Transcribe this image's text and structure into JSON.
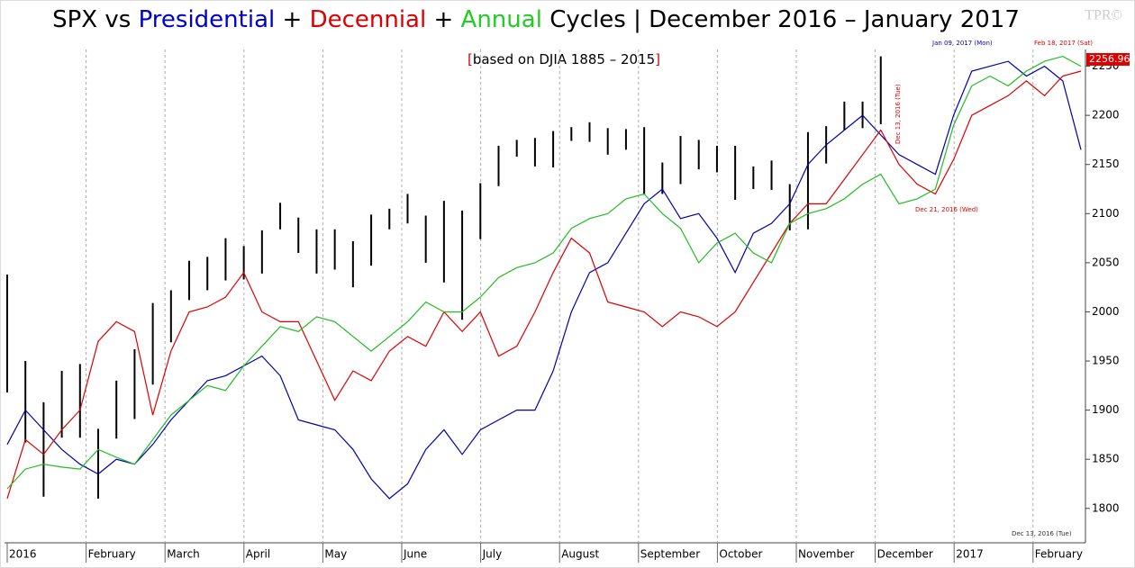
{
  "chart_data": {
    "type": "line",
    "title_parts": [
      {
        "text": "SPX vs ",
        "color": "#000000"
      },
      {
        "text": "Presidential",
        "color": "#0000cc"
      },
      {
        "text": " + ",
        "color": "#000000"
      },
      {
        "text": "Decennial",
        "color": "#dd0000"
      },
      {
        "text": " + ",
        "color": "#000000"
      },
      {
        "text": "Annual",
        "color": "#22cc22"
      },
      {
        "text": " Cycles | December 2016 – January 2017",
        "color": "#000000"
      }
    ],
    "subtitle_parts": [
      {
        "text": "[",
        "color": "#dd0000"
      },
      {
        "text": "based on DJIA 1885 – 2015",
        "color": "#000000"
      },
      {
        "text": "]",
        "color": "#dd0000"
      }
    ],
    "watermark": "TPR©",
    "x_axis_labels": [
      "2016",
      "February",
      "March",
      "April",
      "May",
      "June",
      "July",
      "August",
      "September",
      "October",
      "November",
      "December",
      "2017",
      "February"
    ],
    "series": [
      {
        "name": "SPX",
        "color": "#000000",
        "high": [
          2038,
          1950,
          1908,
          1940,
          1947,
          1881,
          1930,
          1962,
          2009,
          2022,
          2052,
          2056,
          2075,
          2067,
          2083,
          2111,
          2096,
          2084,
          2084,
          2072,
          2099,
          2105,
          2120,
          2098,
          2113,
          2103,
          2131,
          2169,
          2175,
          2177,
          2184,
          2188,
          2193,
          2187,
          2186,
          2188,
          2152,
          2179,
          2175,
          2169,
          2169,
          2148,
          2154,
          2130,
          2183,
          2189,
          2214,
          2214,
          2260,
          null,
          null,
          null,
          null,
          null,
          null,
          null,
          null,
          null,
          null,
          null
        ],
        "low": [
          1918,
          1867,
          1812,
          1872,
          1872,
          1810,
          1871,
          1891,
          1926,
          1969,
          2012,
          2022,
          2032,
          2033,
          2039,
          2084,
          2060,
          2039,
          2043,
          2025,
          2047,
          2084,
          2090,
          2050,
          2030,
          1992,
          2074,
          2128,
          2158,
          2148,
          2147,
          2174,
          2173,
          2160,
          2165,
          2119,
          2120,
          2130,
          2145,
          2142,
          2114,
          2125,
          2124,
          2083,
          2084,
          2151,
          2185,
          2187,
          2191,
          null,
          null,
          null,
          null,
          null,
          null,
          null,
          null,
          null,
          null,
          null
        ]
      },
      {
        "name": "Presidential",
        "color": "#0000aa",
        "values": [
          1865,
          1900,
          1880,
          1860,
          1845,
          1835,
          1850,
          1845,
          1865,
          1890,
          1910,
          1930,
          1935,
          1945,
          1955,
          1935,
          1890,
          1885,
          1880,
          1860,
          1830,
          1810,
          1825,
          1860,
          1880,
          1855,
          1880,
          1890,
          1900,
          1900,
          1940,
          2000,
          2040,
          2050,
          2080,
          2110,
          2125,
          2095,
          2100,
          2075,
          2040,
          2080,
          2090,
          2110,
          2150,
          2170,
          2185,
          2200,
          2180,
          2160,
          2150,
          2140,
          2200,
          2245,
          2250,
          2255,
          2240,
          2250,
          2235,
          2165
        ]
      },
      {
        "name": "Decennial",
        "color": "#dd0000",
        "values": [
          1810,
          1870,
          1855,
          1880,
          1900,
          1970,
          1990,
          1980,
          1895,
          1960,
          2000,
          2005,
          2015,
          2040,
          2000,
          1990,
          1990,
          1950,
          1910,
          1940,
          1930,
          1960,
          1975,
          1965,
          2000,
          1980,
          2000,
          1955,
          1965,
          2000,
          2040,
          2075,
          2060,
          2010,
          2005,
          2000,
          1985,
          2000,
          1995,
          1985,
          2000,
          2030,
          2060,
          2090,
          2110,
          2110,
          2135,
          2160,
          2185,
          2150,
          2130,
          2120,
          2155,
          2200,
          2210,
          2220,
          2235,
          2220,
          2240,
          2245
        ]
      },
      {
        "name": "Annual",
        "color": "#22bb22",
        "values": [
          1820,
          1840,
          1845,
          1842,
          1840,
          1860,
          1852,
          1845,
          1870,
          1895,
          1910,
          1925,
          1920,
          1945,
          1965,
          1985,
          1980,
          1995,
          1990,
          1975,
          1960,
          1975,
          1990,
          2010,
          2000,
          2000,
          2015,
          2035,
          2045,
          2050,
          2060,
          2085,
          2095,
          2100,
          2115,
          2120,
          2100,
          2085,
          2050,
          2070,
          2080,
          2060,
          2050,
          2090,
          2100,
          2105,
          2115,
          2130,
          2140,
          2110,
          2115,
          2125,
          2190,
          2230,
          2240,
          2230,
          2245,
          2255,
          2260,
          2250
        ]
      }
    ],
    "ylim": [
      1765,
      2267
    ],
    "yticks": [
      1800,
      1850,
      1900,
      1950,
      2000,
      2050,
      2100,
      2150,
      2200,
      2250
    ],
    "last_price": {
      "value": 2256.96,
      "label": "2256.960"
    },
    "annotations": [
      {
        "text": "Jan 09, 2017 (Mon)",
        "color": "#0000cc"
      },
      {
        "text": "Feb 18, 2017 (Sat)",
        "color": "#dd0000"
      },
      {
        "text": "Dec 13, 2016 (Tue)",
        "color": "#dd0000"
      },
      {
        "text": "Dec 21, 2016 (Wed)",
        "color": "#dd0000"
      },
      {
        "text": "Dec 13, 2016 (Tue)",
        "color": "#333333"
      }
    ]
  }
}
